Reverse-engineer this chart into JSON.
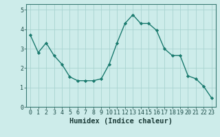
{
  "xlabel": "Humidex (Indice chaleur)",
  "x": [
    0,
    1,
    2,
    3,
    4,
    5,
    6,
    7,
    8,
    9,
    10,
    11,
    12,
    13,
    14,
    15,
    16,
    17,
    18,
    19,
    20,
    21,
    22,
    23
  ],
  "y": [
    3.7,
    2.8,
    3.3,
    2.65,
    2.2,
    1.55,
    1.35,
    1.35,
    1.35,
    1.45,
    2.2,
    3.3,
    4.3,
    4.75,
    4.3,
    4.3,
    3.95,
    3.0,
    2.65,
    2.65,
    1.6,
    1.45,
    1.05,
    0.45
  ],
  "line_color": "#1a7a6e",
  "marker": "D",
  "marker_size": 2.2,
  "line_width": 1.0,
  "bg_color": "#cdecea",
  "grid_color": "#a8d4d0",
  "spine_color": "#3a7a74",
  "tick_color": "#1a4a46",
  "label_color": "#1a3a36",
  "xlim": [
    -0.5,
    23.5
  ],
  "ylim": [
    0,
    5.3
  ],
  "yticks": [
    0,
    1,
    2,
    3,
    4,
    5
  ],
  "xticks": [
    0,
    1,
    2,
    3,
    4,
    5,
    6,
    7,
    8,
    9,
    10,
    11,
    12,
    13,
    14,
    15,
    16,
    17,
    18,
    19,
    20,
    21,
    22,
    23
  ],
  "xlabel_fontsize": 7.5,
  "tick_fontsize": 6.0
}
